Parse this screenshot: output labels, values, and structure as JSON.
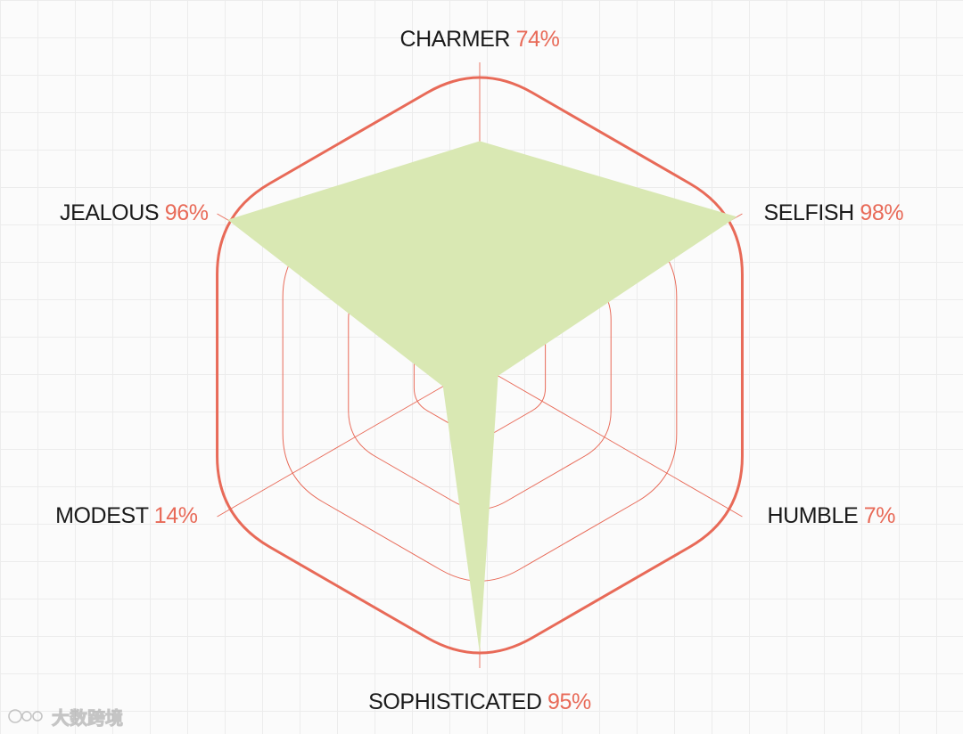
{
  "chart_data": {
    "type": "radar",
    "axes": [
      "CHARMER",
      "SELFISH",
      "HUMBLE",
      "SOPHISTICATED",
      "MODEST",
      "JEALOUS"
    ],
    "values": [
      74,
      98,
      7,
      95,
      14,
      96
    ],
    "value_labels": [
      "74%",
      "98%",
      "7%",
      "95%",
      "14%",
      "96%"
    ],
    "range": [
      0,
      100
    ],
    "rings": [
      25,
      50,
      75,
      100
    ],
    "grid": true,
    "title": ""
  },
  "colors": {
    "grid": "#e86a58",
    "fill": "#d9e8b3",
    "label": "#1a1a1a",
    "value": "#e86a58"
  },
  "watermark": {
    "text": "大数跨境"
  }
}
